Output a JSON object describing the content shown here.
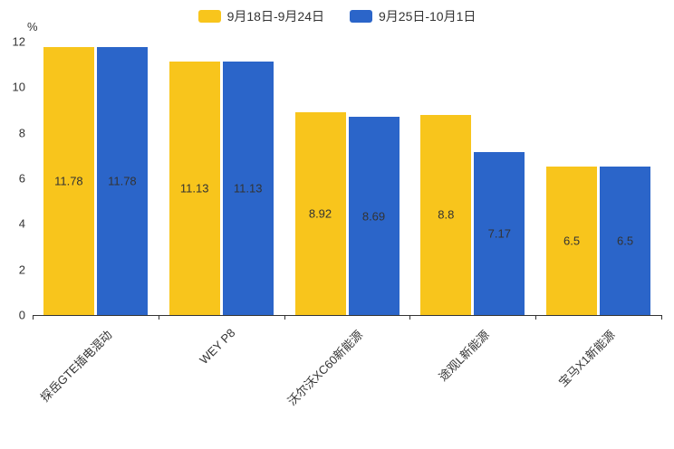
{
  "chart_data": {
    "type": "bar",
    "title": "",
    "xlabel": "",
    "ylabel": "%",
    "ylim": [
      0,
      12
    ],
    "yticks": [
      0,
      2,
      4,
      6,
      8,
      10,
      12
    ],
    "grid": false,
    "legend_position": "top-center",
    "categories": [
      "探岳GTE插电混动",
      "WEY P8",
      "沃尔沃XC60新能源",
      "途观L新能源",
      "宝马X1新能源"
    ],
    "series": [
      {
        "name": "9月18日-9月24日",
        "color": "#F8C51C",
        "values": [
          11.78,
          11.13,
          8.92,
          8.8,
          6.5
        ],
        "labels": [
          "11.78",
          "11.13",
          "8.92",
          "8.8",
          "6.5"
        ]
      },
      {
        "name": "9月25日-10月1日",
        "color": "#2B65C9",
        "values": [
          11.78,
          11.13,
          8.69,
          7.17,
          6.5
        ],
        "labels": [
          "11.78",
          "11.13",
          "8.69",
          "7.17",
          "6.5"
        ]
      }
    ],
    "label_position": "inside-middle",
    "text_color": "#333333",
    "axis_color": "#333333"
  }
}
